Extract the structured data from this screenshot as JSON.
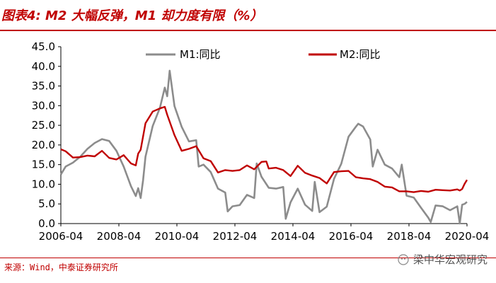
{
  "header": {
    "title": "图表4: M2 大幅反弹，M1 却力度有限（%）"
  },
  "footer": {
    "source": "来源：Wind，中泰证券研究所",
    "watermark": "梁中华宏观研究"
  },
  "colors": {
    "m1": "#8c8c8c",
    "m2": "#c00000",
    "title": "#c00000"
  },
  "chart_data": {
    "type": "line",
    "title": "",
    "xlabel": "",
    "ylabel": "",
    "ylim": [
      0,
      45
    ],
    "yticks": [
      "0.0",
      "5.0",
      "10.0",
      "15.0",
      "20.0",
      "25.0",
      "30.0",
      "35.0",
      "40.0",
      "45.0"
    ],
    "xlim": [
      "2006-04",
      "2020-04"
    ],
    "xticks": [
      "2006-04",
      "2008-04",
      "2010-04",
      "2012-04",
      "2014-04",
      "2016-04",
      "2018-04",
      "2020-04"
    ],
    "grid": false,
    "legend": "top",
    "series": [
      {
        "name": "M1:同比",
        "color": "#8c8c8c",
        "points": [
          [
            "2006-04",
            12.5
          ],
          [
            "2006-06",
            14.5
          ],
          [
            "2006-09",
            15.5
          ],
          [
            "2006-12",
            17.0
          ],
          [
            "2007-03",
            19.0
          ],
          [
            "2007-06",
            20.5
          ],
          [
            "2007-09",
            21.5
          ],
          [
            "2007-12",
            21.0
          ],
          [
            "2008-03",
            18.5
          ],
          [
            "2008-06",
            14.5
          ],
          [
            "2008-09",
            9.5
          ],
          [
            "2008-11",
            7.0
          ],
          [
            "2008-12",
            9.0
          ],
          [
            "2009-01",
            6.5
          ],
          [
            "2009-02",
            11.0
          ],
          [
            "2009-03",
            17.0
          ],
          [
            "2009-06",
            24.8
          ],
          [
            "2009-09",
            29.5
          ],
          [
            "2009-11",
            34.6
          ],
          [
            "2009-12",
            32.4
          ],
          [
            "2010-01",
            38.9
          ],
          [
            "2010-03",
            29.9
          ],
          [
            "2010-06",
            24.6
          ],
          [
            "2010-09",
            20.9
          ],
          [
            "2010-12",
            21.2
          ],
          [
            "2011-01",
            14.5
          ],
          [
            "2011-03",
            15.0
          ],
          [
            "2011-06",
            13.1
          ],
          [
            "2011-09",
            8.9
          ],
          [
            "2011-12",
            7.9
          ],
          [
            "2012-01",
            3.1
          ],
          [
            "2012-03",
            4.4
          ],
          [
            "2012-06",
            4.7
          ],
          [
            "2012-09",
            7.3
          ],
          [
            "2012-12",
            6.5
          ],
          [
            "2013-01",
            15.3
          ],
          [
            "2013-03",
            11.9
          ],
          [
            "2013-06",
            9.1
          ],
          [
            "2013-09",
            8.9
          ],
          [
            "2013-12",
            9.3
          ],
          [
            "2014-01",
            1.2
          ],
          [
            "2014-03",
            5.4
          ],
          [
            "2014-06",
            8.9
          ],
          [
            "2014-09",
            4.8
          ],
          [
            "2014-12",
            3.2
          ],
          [
            "2015-01",
            10.6
          ],
          [
            "2015-03",
            2.9
          ],
          [
            "2015-06",
            4.3
          ],
          [
            "2015-09",
            11.4
          ],
          [
            "2015-12",
            15.2
          ],
          [
            "2016-03",
            22.1
          ],
          [
            "2016-06",
            24.6
          ],
          [
            "2016-07",
            25.4
          ],
          [
            "2016-09",
            24.7
          ],
          [
            "2016-12",
            21.4
          ],
          [
            "2017-01",
            14.5
          ],
          [
            "2017-03",
            18.8
          ],
          [
            "2017-06",
            15.0
          ],
          [
            "2017-09",
            14.0
          ],
          [
            "2017-12",
            11.8
          ],
          [
            "2018-01",
            15.0
          ],
          [
            "2018-03",
            7.1
          ],
          [
            "2018-06",
            6.6
          ],
          [
            "2018-09",
            4.0
          ],
          [
            "2018-12",
            1.5
          ],
          [
            "2019-01",
            0.4
          ],
          [
            "2019-03",
            4.6
          ],
          [
            "2019-06",
            4.4
          ],
          [
            "2019-09",
            3.4
          ],
          [
            "2019-12",
            4.4
          ],
          [
            "2020-01",
            0.0
          ],
          [
            "2020-02",
            4.8
          ],
          [
            "2020-03",
            5.0
          ],
          [
            "2020-04",
            5.5
          ]
        ]
      },
      {
        "name": "M2:同比",
        "color": "#c00000",
        "points": [
          [
            "2006-04",
            18.9
          ],
          [
            "2006-06",
            18.4
          ],
          [
            "2006-09",
            16.8
          ],
          [
            "2006-12",
            16.9
          ],
          [
            "2007-03",
            17.3
          ],
          [
            "2007-06",
            17.1
          ],
          [
            "2007-09",
            18.5
          ],
          [
            "2007-12",
            16.7
          ],
          [
            "2008-03",
            16.3
          ],
          [
            "2008-06",
            17.4
          ],
          [
            "2008-09",
            15.3
          ],
          [
            "2008-11",
            14.8
          ],
          [
            "2008-12",
            17.8
          ],
          [
            "2009-01",
            18.8
          ],
          [
            "2009-03",
            25.5
          ],
          [
            "2009-06",
            28.5
          ],
          [
            "2009-09",
            29.3
          ],
          [
            "2009-11",
            29.7
          ],
          [
            "2009-12",
            27.7
          ],
          [
            "2010-03",
            22.5
          ],
          [
            "2010-06",
            18.5
          ],
          [
            "2010-09",
            19.0
          ],
          [
            "2010-12",
            19.7
          ],
          [
            "2011-03",
            16.6
          ],
          [
            "2011-06",
            15.9
          ],
          [
            "2011-09",
            13.0
          ],
          [
            "2011-12",
            13.6
          ],
          [
            "2012-03",
            13.4
          ],
          [
            "2012-06",
            13.6
          ],
          [
            "2012-09",
            14.8
          ],
          [
            "2012-12",
            13.8
          ],
          [
            "2013-03",
            15.7
          ],
          [
            "2013-05",
            15.8
          ],
          [
            "2013-06",
            14.0
          ],
          [
            "2013-09",
            14.2
          ],
          [
            "2013-12",
            13.6
          ],
          [
            "2014-03",
            12.1
          ],
          [
            "2014-06",
            14.7
          ],
          [
            "2014-09",
            12.9
          ],
          [
            "2014-12",
            12.2
          ],
          [
            "2015-03",
            11.6
          ],
          [
            "2015-06",
            10.2
          ],
          [
            "2015-09",
            13.1
          ],
          [
            "2015-12",
            13.3
          ],
          [
            "2016-03",
            13.4
          ],
          [
            "2016-06",
            11.8
          ],
          [
            "2016-09",
            11.5
          ],
          [
            "2016-12",
            11.3
          ],
          [
            "2017-03",
            10.6
          ],
          [
            "2017-06",
            9.4
          ],
          [
            "2017-09",
            9.2
          ],
          [
            "2017-12",
            8.2
          ],
          [
            "2018-03",
            8.2
          ],
          [
            "2018-06",
            8.0
          ],
          [
            "2018-09",
            8.3
          ],
          [
            "2018-12",
            8.1
          ],
          [
            "2019-03",
            8.6
          ],
          [
            "2019-06",
            8.5
          ],
          [
            "2019-09",
            8.4
          ],
          [
            "2019-12",
            8.7
          ],
          [
            "2020-01",
            8.4
          ],
          [
            "2020-02",
            8.8
          ],
          [
            "2020-03",
            10.1
          ],
          [
            "2020-04",
            11.1
          ]
        ]
      }
    ]
  }
}
